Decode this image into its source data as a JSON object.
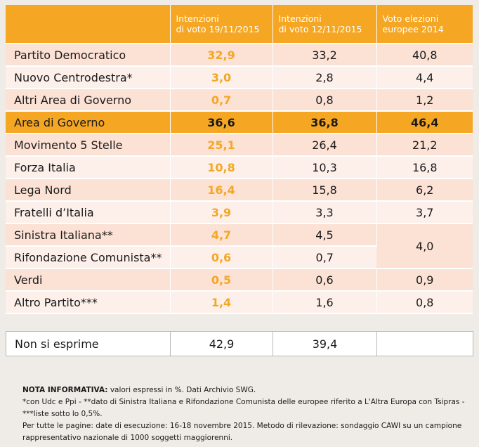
{
  "header": {
    "col1": [
      "Intenzioni",
      "di voto 19/11/2015"
    ],
    "col2": [
      "Intenzioni",
      "di voto 12/11/2015"
    ],
    "col3": [
      "Voto elezioni",
      "europee 2014"
    ]
  },
  "rows": [
    {
      "party": "Partito Democratico",
      "v1": "32,9",
      "v2": "33,2",
      "v3": "40,8"
    },
    {
      "party": "Nuovo Centrodestra*",
      "v1": "3,0",
      "v2": "2,8",
      "v3": "4,4"
    },
    {
      "party": "Altri Area di Governo",
      "v1": "0,7",
      "v2": "0,8",
      "v3": "1,2"
    },
    {
      "party": "Area di Governo",
      "v1": "36,6",
      "v2": "36,8",
      "v3": "46,4"
    },
    {
      "party": "Movimento 5 Stelle",
      "v1": "25,1",
      "v2": "26,4",
      "v3": "21,2"
    },
    {
      "party": "Forza Italia",
      "v1": "10,8",
      "v2": "10,3",
      "v3": "16,8"
    },
    {
      "party": "Lega Nord",
      "v1": "16,4",
      "v2": "15,8",
      "v3": "6,2"
    },
    {
      "party": "Fratelli d’Italia",
      "v1": "3,9",
      "v2": "3,3",
      "v3": "3,7"
    },
    {
      "party": "Sinistra Italiana**",
      "v1": "4,7",
      "v2": "4,5",
      "v3": "4,0"
    },
    {
      "party": "Rifondazione Comunista**",
      "v1": "0,6",
      "v2": "0,7"
    },
    {
      "party": "Verdi",
      "v1": "0,5",
      "v2": "0,6",
      "v3": "0,9"
    },
    {
      "party": "Altro Partito***",
      "v1": "1,4",
      "v2": "1,6",
      "v3": "0,8"
    }
  ],
  "non_esprime": {
    "party": "Non si esprime",
    "v1": "42,9",
    "v2": "39,4",
    "v3": ""
  },
  "notes": {
    "title": "NOTA INFORMATIVA:",
    "line1": " valori espressi in %. Dati Archivio SWG.",
    "line2": "*con Udc e Ppi  - **dato di Sinistra Italiana e Rifondazione Comunista delle europee riferito a L'Altra Europa con Tsipras - ***liste sotto lo 0,5%.",
    "line3": "Per tutte le pagine: date di esecuzione: 16-18 novembre 2015. Metodo di rilevazione: sondaggio CAWI su un campione rappresentativo nazionale di 1000 soggetti maggiorenni."
  },
  "colors": {
    "accent": "#f5a623",
    "row_dark": "#fce1d5",
    "row_light": "#fdf0ea"
  }
}
